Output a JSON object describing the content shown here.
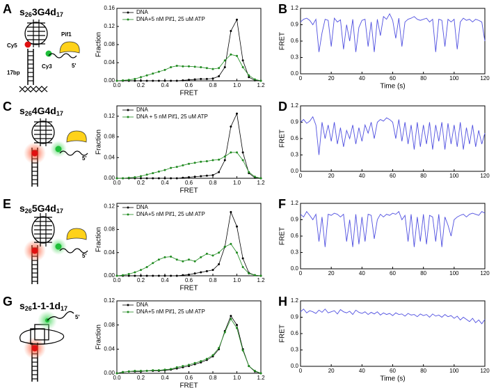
{
  "panel_letters": [
    "A",
    "B",
    "C",
    "D",
    "E",
    "F",
    "G",
    "H"
  ],
  "constructs": [
    {
      "parts": [
        "s",
        "26",
        "3G4d",
        "17"
      ]
    },
    {
      "parts": [
        "s",
        "26",
        "4G4d",
        "17"
      ]
    },
    {
      "parts": [
        "s",
        "26",
        "5G4d",
        "17"
      ]
    },
    {
      "parts": [
        "s",
        "26",
        "1-1-1d",
        "17"
      ]
    }
  ],
  "diagram_labels": {
    "cy5": "Cy5",
    "cy3": "Cy3",
    "pif1": "Pif1",
    "bp": "17bp",
    "five_prime": "5'"
  },
  "chart_data": [
    {
      "type": "line",
      "xlabel": "FRET",
      "ylabel": "Fraction",
      "legend": "upper left",
      "markers": true,
      "x": [
        0,
        0.05,
        0.1,
        0.15,
        0.2,
        0.25,
        0.3,
        0.35,
        0.4,
        0.45,
        0.5,
        0.55,
        0.6,
        0.65,
        0.7,
        0.75,
        0.8,
        0.85,
        0.9,
        0.95,
        1.0,
        1.05,
        1.1,
        1.15,
        1.2
      ],
      "series": [
        {
          "name": "DNA",
          "color": "#000000",
          "values": [
            0,
            0,
            0,
            0,
            0,
            0,
            0,
            0,
            0,
            0,
            0,
            0.001,
            0.002,
            0.003,
            0.004,
            0.004,
            0.005,
            0.01,
            0.03,
            0.11,
            0.135,
            0.045,
            0.008,
            0.001,
            0
          ]
        },
        {
          "name": "DNA+5 nM Pif1, 25 uM ATP",
          "color": "#1f8a1f",
          "values": [
            0,
            0.001,
            0.002,
            0.004,
            0.008,
            0.012,
            0.016,
            0.02,
            0.024,
            0.03,
            0.033,
            0.032,
            0.032,
            0.031,
            0.03,
            0.028,
            0.026,
            0.028,
            0.045,
            0.058,
            0.055,
            0.03,
            0.012,
            0.003,
            0
          ]
        }
      ],
      "xlim": [
        0,
        1.2
      ],
      "xticks": [
        {
          "value": 0,
          "label": "0.0"
        },
        0.2,
        0.4,
        0.6,
        0.8,
        {
          "value": 1,
          "label": "1.0"
        },
        1.2
      ],
      "ylim": [
        0,
        0.16
      ],
      "yticks": [
        {
          "value": 0,
          "label": "0.00"
        },
        {
          "value": 0.04,
          "label": "0.04"
        },
        {
          "value": 0.08,
          "label": "0.08"
        },
        {
          "value": 0.12,
          "label": "0.12"
        },
        {
          "value": 0.16,
          "label": "0.16"
        }
      ]
    },
    {
      "type": "line",
      "xlabel": "Time (s)",
      "ylabel": "FRET",
      "color": "#4f4fe0",
      "x": [
        0,
        2,
        4,
        6,
        8,
        10,
        12,
        14,
        16,
        18,
        20,
        22,
        24,
        26,
        28,
        30,
        32,
        34,
        36,
        38,
        40,
        42,
        44,
        46,
        48,
        50,
        52,
        54,
        56,
        58,
        60,
        62,
        64,
        66,
        68,
        70,
        72,
        74,
        76,
        78,
        80,
        82,
        84,
        86,
        88,
        90,
        92,
        94,
        96,
        98,
        100,
        102,
        104,
        106,
        108,
        110,
        112,
        114,
        116,
        118,
        120
      ],
      "values": [
        0.95,
        1.0,
        1.02,
        0.98,
        0.9,
        1.0,
        0.4,
        0.75,
        1.0,
        0.98,
        0.5,
        1.02,
        0.95,
        0.99,
        0.45,
        0.9,
        0.6,
        1.0,
        0.4,
        0.85,
        0.98,
        1.0,
        0.5,
        0.95,
        0.4,
        1.0,
        0.7,
        1.05,
        1.0,
        1.1,
        0.98,
        0.65,
        1.02,
        0.5,
        0.95,
        1.0,
        1.02,
        1.05,
        1.0,
        0.98,
        1.0,
        1.02,
        0.95,
        1.0,
        0.4,
        1.0,
        0.98,
        0.5,
        1.0,
        0.95,
        1.0,
        0.45,
        0.95,
        1.02,
        0.98,
        1.0,
        0.95,
        1.0,
        0.98,
        0.95,
        0.6
      ],
      "xlim": [
        0,
        120
      ],
      "xticks": [
        0,
        20,
        40,
        60,
        80,
        100,
        120
      ],
      "ylim": [
        0,
        1.2
      ],
      "yticks": [
        {
          "value": 0,
          "label": "0.0"
        },
        0.3,
        0.6,
        0.9,
        1.2
      ]
    },
    {
      "type": "line",
      "xlabel": "FRET",
      "ylabel": "Fraction",
      "legend": "upper left",
      "markers": true,
      "x": [
        0,
        0.05,
        0.1,
        0.15,
        0.2,
        0.25,
        0.3,
        0.35,
        0.4,
        0.45,
        0.5,
        0.55,
        0.6,
        0.65,
        0.7,
        0.75,
        0.8,
        0.85,
        0.9,
        0.95,
        1.0,
        1.05,
        1.1,
        1.15,
        1.2
      ],
      "series": [
        {
          "name": "DNA",
          "color": "#000000",
          "values": [
            0,
            0,
            0,
            0,
            0,
            0,
            0,
            0,
            0,
            0,
            0,
            0.001,
            0.002,
            0.003,
            0.004,
            0.005,
            0.006,
            0.012,
            0.035,
            0.1,
            0.125,
            0.05,
            0.01,
            0.001,
            0
          ]
        },
        {
          "name": "DNA + 5 nM Pif1, 25 uM ATP",
          "color": "#1f8a1f",
          "values": [
            0,
            0,
            0.001,
            0.002,
            0.004,
            0.007,
            0.01,
            0.013,
            0.016,
            0.02,
            0.022,
            0.025,
            0.028,
            0.03,
            0.032,
            0.033,
            0.035,
            0.036,
            0.042,
            0.05,
            0.05,
            0.035,
            0.012,
            0.003,
            0
          ]
        }
      ],
      "xlim": [
        0,
        1.2
      ],
      "xticks": [
        {
          "value": 0,
          "label": "0.0"
        },
        0.2,
        0.4,
        0.6,
        0.8,
        {
          "value": 1,
          "label": "1.0"
        },
        1.2
      ],
      "ylim": [
        0,
        0.14
      ],
      "yticks": [
        {
          "value": 0,
          "label": "0.00"
        },
        {
          "value": 0.04,
          "label": "0.04"
        },
        {
          "value": 0.08,
          "label": "0.08"
        },
        {
          "value": 0.12,
          "label": "0.12"
        }
      ]
    },
    {
      "type": "line",
      "ylabel": "FRET",
      "color": "#4f4fe0",
      "x": [
        0,
        2,
        4,
        6,
        8,
        10,
        12,
        14,
        16,
        18,
        20,
        22,
        24,
        26,
        28,
        30,
        32,
        34,
        36,
        38,
        40,
        42,
        44,
        46,
        48,
        50,
        52,
        54,
        56,
        58,
        60,
        62,
        64,
        66,
        68,
        70,
        72,
        74,
        76,
        78,
        80,
        82,
        84,
        86,
        88,
        90,
        92,
        94,
        96,
        98,
        100,
        102,
        104,
        106,
        108,
        110,
        112,
        114,
        116,
        118,
        120
      ],
      "values": [
        0.9,
        0.95,
        0.88,
        0.92,
        1.0,
        0.85,
        0.3,
        0.9,
        0.6,
        0.85,
        0.55,
        0.9,
        0.5,
        0.8,
        0.45,
        0.75,
        0.6,
        0.85,
        0.5,
        0.8,
        0.55,
        0.85,
        0.7,
        0.9,
        0.6,
        0.9,
        0.95,
        0.92,
        0.98,
        0.95,
        0.9,
        0.6,
        0.95,
        0.55,
        0.9,
        0.5,
        0.85,
        0.4,
        0.9,
        0.45,
        0.85,
        0.5,
        0.9,
        0.4,
        0.85,
        0.55,
        0.9,
        0.4,
        0.88,
        0.5,
        0.85,
        0.45,
        0.9,
        0.4,
        0.8,
        0.5,
        0.85,
        0.45,
        0.75,
        0.5,
        0.7
      ],
      "xlim": [
        0,
        120
      ],
      "xticks": [
        0,
        20,
        40,
        60,
        80,
        100,
        120
      ],
      "ylim": [
        0,
        1.2
      ],
      "yticks": [
        {
          "value": 0,
          "label": "0.0"
        },
        0.3,
        0.6,
        0.9,
        1.2
      ]
    },
    {
      "type": "line",
      "xlabel": "FRET",
      "ylabel": "Fraction",
      "legend": "upper left",
      "markers": true,
      "x": [
        0,
        0.05,
        0.1,
        0.15,
        0.2,
        0.25,
        0.3,
        0.35,
        0.4,
        0.45,
        0.5,
        0.55,
        0.6,
        0.65,
        0.7,
        0.75,
        0.8,
        0.85,
        0.9,
        0.95,
        1.0,
        1.05,
        1.1,
        1.15,
        1.2
      ],
      "series": [
        {
          "name": "DNA",
          "color": "#000000",
          "values": [
            0,
            0,
            0,
            0,
            0,
            0,
            0,
            0,
            0,
            0,
            0,
            0.001,
            0.002,
            0.004,
            0.006,
            0.008,
            0.01,
            0.02,
            0.05,
            0.11,
            0.085,
            0.03,
            0.005,
            0.001,
            0
          ]
        },
        {
          "name": "DNA+5 nM Pif1, 25 uM ATP",
          "color": "#1f8a1f",
          "values": [
            0,
            0.001,
            0.003,
            0.006,
            0.01,
            0.015,
            0.022,
            0.028,
            0.032,
            0.033,
            0.028,
            0.025,
            0.028,
            0.025,
            0.032,
            0.038,
            0.035,
            0.04,
            0.05,
            0.055,
            0.04,
            0.015,
            0.004,
            0.001,
            0
          ]
        }
      ],
      "xlim": [
        0,
        1.2
      ],
      "xticks": [
        {
          "value": 0,
          "label": "0.0"
        },
        0.2,
        0.4,
        0.6,
        0.8,
        {
          "value": 1,
          "label": "1.0"
        },
        1.2
      ],
      "ylim": [
        0,
        0.125
      ],
      "yticks": [
        {
          "value": 0,
          "label": "0.00"
        },
        {
          "value": 0.04,
          "label": "0.04"
        },
        {
          "value": 0.08,
          "label": "0.08"
        },
        {
          "value": 0.12,
          "label": "0.12"
        }
      ]
    },
    {
      "type": "line",
      "ylabel": "FRET",
      "color": "#4f4fe0",
      "x": [
        0,
        2,
        4,
        6,
        8,
        10,
        12,
        14,
        16,
        18,
        20,
        22,
        24,
        26,
        28,
        30,
        32,
        34,
        36,
        38,
        40,
        42,
        44,
        46,
        48,
        50,
        52,
        54,
        56,
        58,
        60,
        62,
        64,
        66,
        68,
        70,
        72,
        74,
        76,
        78,
        80,
        82,
        84,
        86,
        88,
        90,
        92,
        94,
        96,
        98,
        100,
        102,
        104,
        106,
        108,
        110,
        112,
        114,
        116,
        118,
        120
      ],
      "values": [
        1.0,
        0.95,
        1.05,
        0.98,
        0.9,
        1.0,
        0.5,
        0.95,
        0.4,
        1.0,
        0.98,
        1.02,
        1.0,
        0.95,
        1.0,
        0.5,
        0.9,
        0.4,
        1.0,
        0.45,
        0.95,
        0.5,
        1.0,
        0.98,
        0.55,
        0.9,
        1.0,
        0.95,
        1.0,
        0.98,
        1.02,
        1.0,
        1.05,
        0.9,
        0.98,
        0.5,
        1.0,
        0.4,
        0.95,
        0.5,
        1.0,
        0.45,
        0.98,
        0.95,
        0.5,
        1.0,
        0.4,
        0.95,
        0.8,
        0.6,
        0.9,
        0.95,
        0.98,
        1.0,
        0.95,
        1.0,
        1.02,
        1.0,
        0.98,
        1.05,
        1.02
      ],
      "xlim": [
        0,
        120
      ],
      "xticks": [
        0,
        20,
        40,
        60,
        80,
        100,
        120
      ],
      "ylim": [
        0,
        1.2
      ],
      "yticks": [
        {
          "value": 0,
          "label": "0.0"
        },
        0.3,
        0.6,
        0.9,
        1.2
      ]
    },
    {
      "type": "line",
      "xlabel": "FRET",
      "ylabel": "Fraction",
      "legend": "upper left",
      "markers": true,
      "x": [
        0,
        0.05,
        0.1,
        0.15,
        0.2,
        0.25,
        0.3,
        0.35,
        0.4,
        0.45,
        0.5,
        0.55,
        0.6,
        0.65,
        0.7,
        0.75,
        0.8,
        0.85,
        0.9,
        0.95,
        1.0,
        1.05,
        1.1,
        1.15,
        1.2
      ],
      "series": [
        {
          "name": "DNA",
          "color": "#000000",
          "values": [
            0,
            0.002,
            0.003,
            0.003,
            0.003,
            0.004,
            0.004,
            0.004,
            0.005,
            0.006,
            0.008,
            0.01,
            0.012,
            0.015,
            0.018,
            0.022,
            0.028,
            0.04,
            0.07,
            0.095,
            0.08,
            0.04,
            0.012,
            0.003,
            0
          ]
        },
        {
          "name": "DNA+5 nM Pif1, 25 uM ATP",
          "color": "#1f8a1f",
          "values": [
            0,
            0.002,
            0.003,
            0.004,
            0.004,
            0.004,
            0.005,
            0.005,
            0.006,
            0.007,
            0.01,
            0.012,
            0.014,
            0.017,
            0.02,
            0.024,
            0.03,
            0.042,
            0.068,
            0.09,
            0.075,
            0.038,
            0.012,
            0.004,
            0
          ]
        }
      ],
      "xlim": [
        0,
        1.2
      ],
      "xticks": [
        {
          "value": 0,
          "label": "0.0"
        },
        0.2,
        0.4,
        0.6,
        0.8,
        {
          "value": 1,
          "label": "1.0"
        },
        1.2
      ],
      "ylim": [
        0,
        0.12
      ],
      "yticks": [
        {
          "value": 0,
          "label": "0.00"
        },
        {
          "value": 0.04,
          "label": "0.04"
        },
        {
          "value": 0.08,
          "label": "0.08"
        },
        {
          "value": 0.12,
          "label": "0.12"
        }
      ]
    },
    {
      "type": "line",
      "xlabel": "Time (s)",
      "ylabel": "FRET",
      "color": "#4f4fe0",
      "x": [
        0,
        2,
        4,
        6,
        8,
        10,
        12,
        14,
        16,
        18,
        20,
        22,
        24,
        26,
        28,
        30,
        32,
        34,
        36,
        38,
        40,
        42,
        44,
        46,
        48,
        50,
        52,
        54,
        56,
        58,
        60,
        62,
        64,
        66,
        68,
        70,
        72,
        74,
        76,
        78,
        80,
        82,
        84,
        86,
        88,
        90,
        92,
        94,
        96,
        98,
        100,
        102,
        104,
        106,
        108,
        110,
        112,
        114,
        116,
        118,
        120
      ],
      "values": [
        1.0,
        1.05,
        0.98,
        1.02,
        1.0,
        0.97,
        1.03,
        0.99,
        1.05,
        0.98,
        1.0,
        1.02,
        0.96,
        1.04,
        1.0,
        0.98,
        1.01,
        0.95,
        1.03,
        0.99,
        0.97,
        1.0,
        0.95,
        0.99,
        0.96,
        1.0,
        0.94,
        0.98,
        0.95,
        0.97,
        0.93,
        0.98,
        0.95,
        0.96,
        0.92,
        0.97,
        0.94,
        0.95,
        0.91,
        0.96,
        0.93,
        0.95,
        0.9,
        0.96,
        0.92,
        0.94,
        0.9,
        0.95,
        0.91,
        0.93,
        0.88,
        0.92,
        0.85,
        0.9,
        0.86,
        0.82,
        0.88,
        0.8,
        0.85,
        0.78,
        0.86
      ],
      "xlim": [
        0,
        120
      ],
      "xticks": [
        0,
        20,
        40,
        60,
        80,
        100,
        120
      ],
      "ylim": [
        0,
        1.2
      ],
      "yticks": [
        {
          "value": 0,
          "label": "0.0"
        },
        0.3,
        0.6,
        0.9,
        1.2
      ]
    }
  ]
}
